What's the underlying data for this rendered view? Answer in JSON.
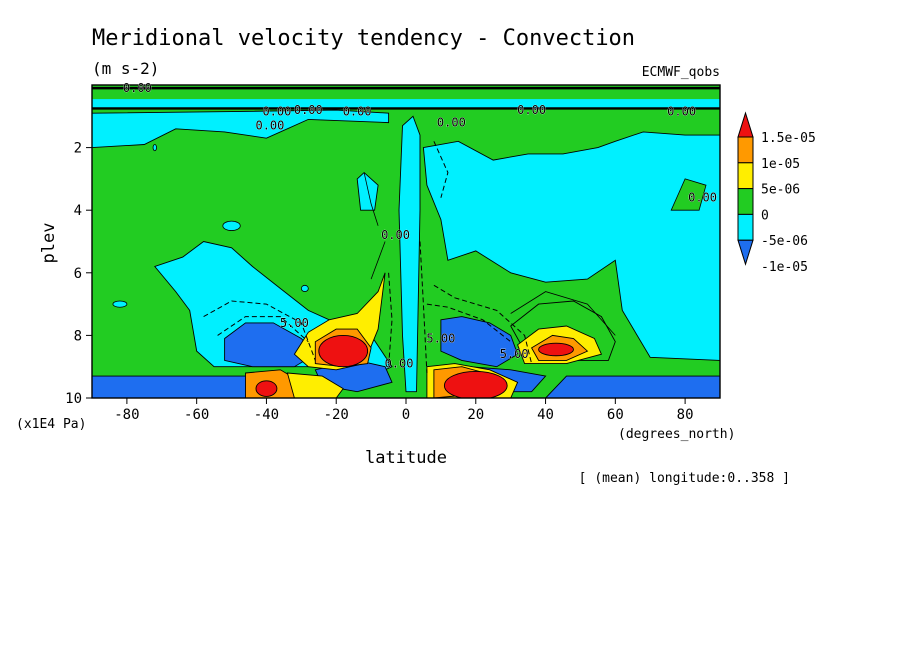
{
  "chart_data": {
    "type": "heatmap",
    "title": "Meridional velocity tendency - Convection",
    "units": "(m s-2)",
    "source_label": "ECMWF_qobs",
    "xlabel": "latitude",
    "x_units": "(degrees_north)",
    "ylabel": "plev",
    "y_units": "(x1E4 Pa)",
    "footnote": "[ (mean) longitude:0..358 ]",
    "xlim": [
      -90,
      90
    ],
    "ylim": [
      10,
      0
    ],
    "x_ticks": [
      -80,
      -60,
      -40,
      -20,
      0,
      20,
      40,
      60,
      80
    ],
    "y_ticks": [
      2,
      4,
      6,
      8,
      10
    ],
    "colorbar": {
      "labels": [
        "1.5e-05",
        "1e-05",
        "5e-06",
        "0",
        "-5e-06",
        "-1e-05"
      ],
      "levels": [
        -1e-05,
        -5e-06,
        0,
        5e-06,
        1e-05,
        1.5e-05
      ],
      "colors": [
        "#1e6ef0",
        "#00f0ff",
        "#22cc22",
        "#ffee00",
        "#ff9900",
        "#ee1111"
      ]
    },
    "contour_labels": [
      "0.00",
      "0.00",
      "0.00",
      "0.00",
      "0.00",
      "0.00",
      "0.00",
      "0.00",
      "0.00",
      "0.00",
      "0.00",
      "5.00",
      "5.00",
      "5.00"
    ],
    "features": [
      {
        "lat": -18,
        "plev": 8.4,
        "sign": "positive",
        "level": "max"
      },
      {
        "lat": 20,
        "plev": 9.5,
        "sign": "positive",
        "level": "max"
      },
      {
        "lat": 42,
        "plev": 8.4,
        "sign": "positive",
        "level": "high"
      },
      {
        "lat": -40,
        "plev": 9.6,
        "sign": "positive",
        "level": "high"
      },
      {
        "lat": -38,
        "plev": 8.2,
        "sign": "negative",
        "level": "low"
      },
      {
        "lat": 22,
        "plev": 8.2,
        "sign": "negative",
        "level": "low"
      },
      {
        "lat": -10,
        "plev": 9.4,
        "sign": "negative",
        "level": "low"
      }
    ]
  }
}
